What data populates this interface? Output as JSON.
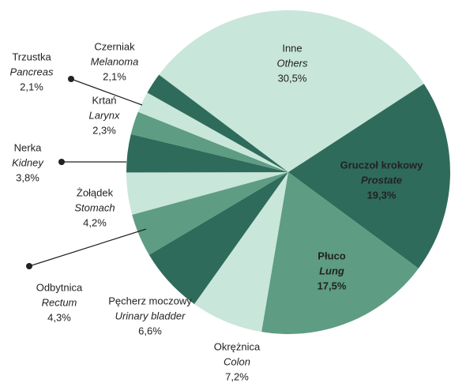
{
  "chart_data": {
    "type": "pie",
    "categories": [
      "Inne",
      "Gruczoł krokowy",
      "Płuco",
      "Okrężnica",
      "Pęcherz moczowy",
      "Odbytnica",
      "Żołądek",
      "Nerka",
      "Krtań",
      "Trzustka",
      "Czerniak"
    ],
    "categories_en": [
      "Others",
      "Prostate",
      "Lung",
      "Colon",
      "Urinary bladder",
      "Rectum",
      "Stomach",
      "Kidney",
      "Larynx",
      "Pancreas",
      "Melanoma"
    ],
    "values": [
      30.5,
      19.3,
      17.5,
      7.2,
      6.6,
      4.3,
      4.2,
      3.8,
      2.3,
      2.1,
      2.1
    ],
    "value_labels": [
      "30,5%",
      "19,3%",
      "17,5%",
      "7,2%",
      "6,6%",
      "4,3%",
      "4,2%",
      "3,8%",
      "2,3%",
      "2,1%",
      "2,1%"
    ],
    "colors": [
      "#c8e6d9",
      "#2f6b5a",
      "#5e9c84",
      "#c8e6d9",
      "#2f6b5a",
      "#5e9c84",
      "#c8e6d9",
      "#2f6b5a",
      "#5e9c84",
      "#c8e6d9",
      "#2f6b5a"
    ]
  }
}
